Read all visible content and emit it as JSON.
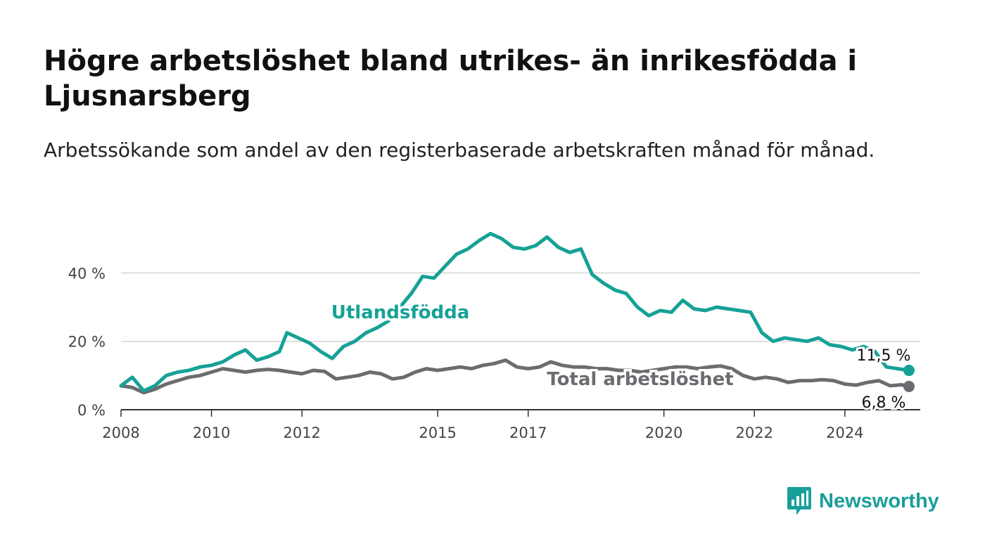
{
  "chart_data": {
    "type": "line",
    "title": "Högre arbetslöshet bland utrikes- än inrikesfödda i Ljusnarsberg",
    "subtitle": "Arbetssökande som andel av den registerbaserade arbetskraften månad för månad.",
    "x_ticks": [
      "2008",
      "2010",
      "2012",
      "2015",
      "2017",
      "2020",
      "2022",
      "2024"
    ],
    "y_ticks": [
      "0 %",
      "20 %",
      "40 %"
    ],
    "xlim": [
      "2008-01",
      "2025-09"
    ],
    "ylim": [
      0,
      52
    ],
    "grid": "horizontal",
    "series": [
      {
        "name": "Utlandsfödda",
        "color": "#16a196",
        "end_label": "11,5 %",
        "points": [
          [
            "2008-01",
            7
          ],
          [
            "2008-04",
            9.5
          ],
          [
            "2008-07",
            5.5
          ],
          [
            "2008-10",
            7
          ],
          [
            "2009-01",
            10
          ],
          [
            "2009-04",
            11
          ],
          [
            "2009-07",
            11.5
          ],
          [
            "2009-10",
            12.5
          ],
          [
            "2010-01",
            13
          ],
          [
            "2010-04",
            14
          ],
          [
            "2010-07",
            16
          ],
          [
            "2010-10",
            17.5
          ],
          [
            "2011-01",
            14.5
          ],
          [
            "2011-04",
            15.5
          ],
          [
            "2011-07",
            17
          ],
          [
            "2011-09",
            22.5
          ],
          [
            "2011-12",
            21
          ],
          [
            "2012-03",
            19.5
          ],
          [
            "2012-06",
            17
          ],
          [
            "2012-09",
            15
          ],
          [
            "2012-12",
            18.5
          ],
          [
            "2013-03",
            20
          ],
          [
            "2013-06",
            22.5
          ],
          [
            "2013-09",
            24
          ],
          [
            "2013-12",
            26
          ],
          [
            "2014-03",
            30
          ],
          [
            "2014-06",
            34
          ],
          [
            "2014-09",
            39
          ],
          [
            "2014-12",
            38.5
          ],
          [
            "2015-03",
            42
          ],
          [
            "2015-06",
            45.5
          ],
          [
            "2015-09",
            47
          ],
          [
            "2015-12",
            49.5
          ],
          [
            "2016-03",
            51.5
          ],
          [
            "2016-06",
            50
          ],
          [
            "2016-09",
            47.5
          ],
          [
            "2016-12",
            47
          ],
          [
            "2017-03",
            48
          ],
          [
            "2017-06",
            50.5
          ],
          [
            "2017-09",
            47.5
          ],
          [
            "2017-12",
            46
          ],
          [
            "2018-03",
            47
          ],
          [
            "2018-06",
            39.5
          ],
          [
            "2018-09",
            37
          ],
          [
            "2018-12",
            35
          ],
          [
            "2019-03",
            34
          ],
          [
            "2019-06",
            30
          ],
          [
            "2019-09",
            27.5
          ],
          [
            "2019-12",
            29
          ],
          [
            "2020-03",
            28.5
          ],
          [
            "2020-06",
            32
          ],
          [
            "2020-09",
            29.5
          ],
          [
            "2020-12",
            29
          ],
          [
            "2021-03",
            30
          ],
          [
            "2021-06",
            29.5
          ],
          [
            "2021-09",
            29
          ],
          [
            "2021-12",
            28.5
          ],
          [
            "2022-03",
            22.5
          ],
          [
            "2022-06",
            20
          ],
          [
            "2022-09",
            21
          ],
          [
            "2022-12",
            20.5
          ],
          [
            "2023-03",
            20
          ],
          [
            "2023-06",
            21
          ],
          [
            "2023-09",
            19
          ],
          [
            "2023-12",
            18.5
          ],
          [
            "2024-03",
            17.5
          ],
          [
            "2024-06",
            18.5
          ],
          [
            "2024-09",
            17
          ],
          [
            "2024-12",
            12.5
          ],
          [
            "2025-03",
            12
          ],
          [
            "2025-06",
            11.5
          ]
        ]
      },
      {
        "name": "Total arbetslöshet",
        "color": "#6b6b70",
        "end_label": "6,8 %",
        "points": [
          [
            "2008-01",
            7
          ],
          [
            "2008-04",
            6.5
          ],
          [
            "2008-07",
            5
          ],
          [
            "2008-10",
            6
          ],
          [
            "2009-01",
            7.5
          ],
          [
            "2009-04",
            8.5
          ],
          [
            "2009-07",
            9.5
          ],
          [
            "2009-10",
            10
          ],
          [
            "2010-01",
            11
          ],
          [
            "2010-04",
            12
          ],
          [
            "2010-07",
            11.5
          ],
          [
            "2010-10",
            11
          ],
          [
            "2011-01",
            11.5
          ],
          [
            "2011-04",
            11.8
          ],
          [
            "2011-07",
            11.5
          ],
          [
            "2011-10",
            11
          ],
          [
            "2012-01",
            10.5
          ],
          [
            "2012-04",
            11.5
          ],
          [
            "2012-07",
            11.2
          ],
          [
            "2012-10",
            9
          ],
          [
            "2013-01",
            9.5
          ],
          [
            "2013-04",
            10
          ],
          [
            "2013-07",
            11
          ],
          [
            "2013-10",
            10.5
          ],
          [
            "2014-01",
            9
          ],
          [
            "2014-04",
            9.5
          ],
          [
            "2014-07",
            11
          ],
          [
            "2014-10",
            12
          ],
          [
            "2015-01",
            11.5
          ],
          [
            "2015-04",
            12
          ],
          [
            "2015-07",
            12.5
          ],
          [
            "2015-10",
            12
          ],
          [
            "2016-01",
            13
          ],
          [
            "2016-04",
            13.5
          ],
          [
            "2016-07",
            14.5
          ],
          [
            "2016-10",
            12.5
          ],
          [
            "2017-01",
            12
          ],
          [
            "2017-04",
            12.5
          ],
          [
            "2017-07",
            14
          ],
          [
            "2017-10",
            13
          ],
          [
            "2018-01",
            12.5
          ],
          [
            "2018-04",
            12.5
          ],
          [
            "2018-07",
            12
          ],
          [
            "2018-10",
            12
          ],
          [
            "2019-01",
            11.5
          ],
          [
            "2019-04",
            11.5
          ],
          [
            "2019-07",
            11
          ],
          [
            "2019-10",
            11.5
          ],
          [
            "2020-01",
            12
          ],
          [
            "2020-04",
            12.5
          ],
          [
            "2020-07",
            12.5
          ],
          [
            "2020-10",
            12
          ],
          [
            "2021-01",
            12.5
          ],
          [
            "2021-04",
            12.8
          ],
          [
            "2021-07",
            12
          ],
          [
            "2021-10",
            10
          ],
          [
            "2022-01",
            9
          ],
          [
            "2022-04",
            9.5
          ],
          [
            "2022-07",
            9
          ],
          [
            "2022-10",
            8
          ],
          [
            "2023-01",
            8.5
          ],
          [
            "2023-04",
            8.5
          ],
          [
            "2023-07",
            8.8
          ],
          [
            "2023-10",
            8.5
          ],
          [
            "2024-01",
            7.5
          ],
          [
            "2024-04",
            7.2
          ],
          [
            "2024-07",
            8
          ],
          [
            "2024-10",
            8.5
          ],
          [
            "2025-01",
            7
          ],
          [
            "2025-04",
            7.3
          ],
          [
            "2025-06",
            6.8
          ]
        ]
      }
    ]
  },
  "brand": {
    "name": "Newsworthy",
    "color": "#199f9a"
  }
}
